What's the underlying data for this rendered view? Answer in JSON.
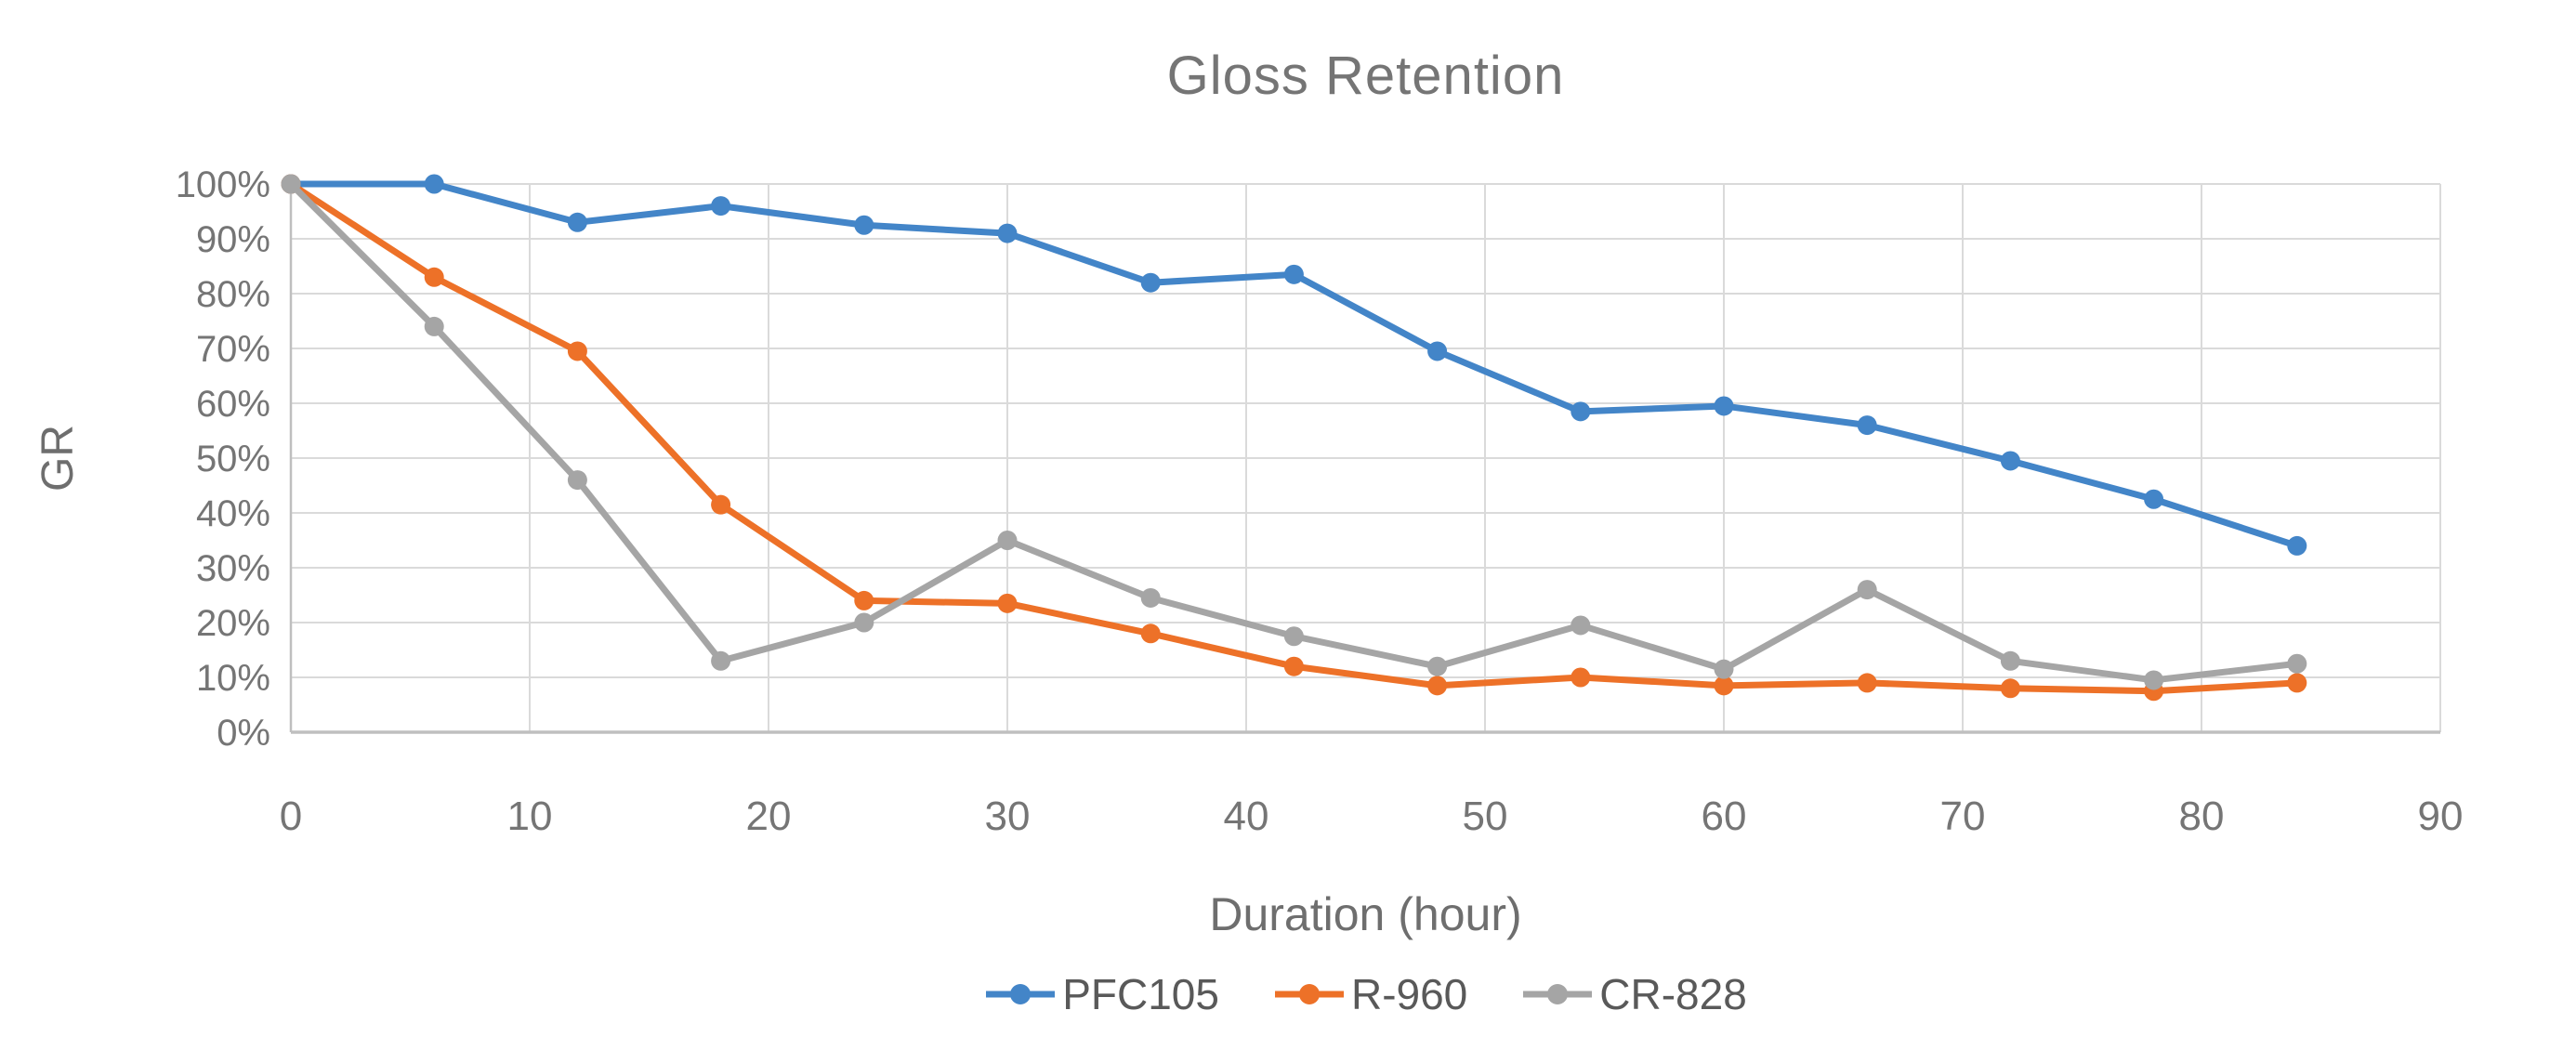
{
  "chart_data": {
    "type": "line",
    "title": "Gloss Retention",
    "xlabel": "Duration (hour)",
    "ylabel": "GR",
    "x": [
      0,
      6,
      12,
      18,
      24,
      30,
      36,
      42,
      48,
      54,
      60,
      66,
      72,
      78,
      84
    ],
    "series": [
      {
        "name": "PFC105",
        "color": "#4385C8",
        "values": [
          100,
          100,
          93,
          96,
          92.5,
          91,
          82,
          83.5,
          69.5,
          58.5,
          59.5,
          56,
          49.5,
          42.5,
          34
        ]
      },
      {
        "name": "R-960",
        "color": "#ED7128",
        "values": [
          100,
          83,
          69.5,
          41.5,
          24,
          23.5,
          18,
          12,
          8.5,
          10,
          8.5,
          9,
          8,
          7.5,
          9
        ]
      },
      {
        "name": "CR-828",
        "color": "#A5A5A5",
        "values": [
          100,
          74,
          46,
          13,
          20,
          35,
          24.5,
          17.5,
          12,
          19.5,
          11.5,
          26,
          13,
          9.5,
          12.5
        ]
      }
    ],
    "xlim": [
      0,
      90
    ],
    "ylim": [
      0,
      100
    ],
    "x_ticks": [
      0,
      10,
      20,
      30,
      40,
      50,
      60,
      70,
      80,
      90
    ],
    "y_ticks": [
      "0%",
      "10%",
      "20%",
      "30%",
      "40%",
      "50%",
      "60%",
      "70%",
      "80%",
      "90%",
      "100%"
    ],
    "grid": true,
    "legend_position": "bottom",
    "colors": {
      "gridline": "#DADADA",
      "axis_line": "#BFBFBF",
      "tick_label": "#757575",
      "title_text": "#757575"
    }
  }
}
